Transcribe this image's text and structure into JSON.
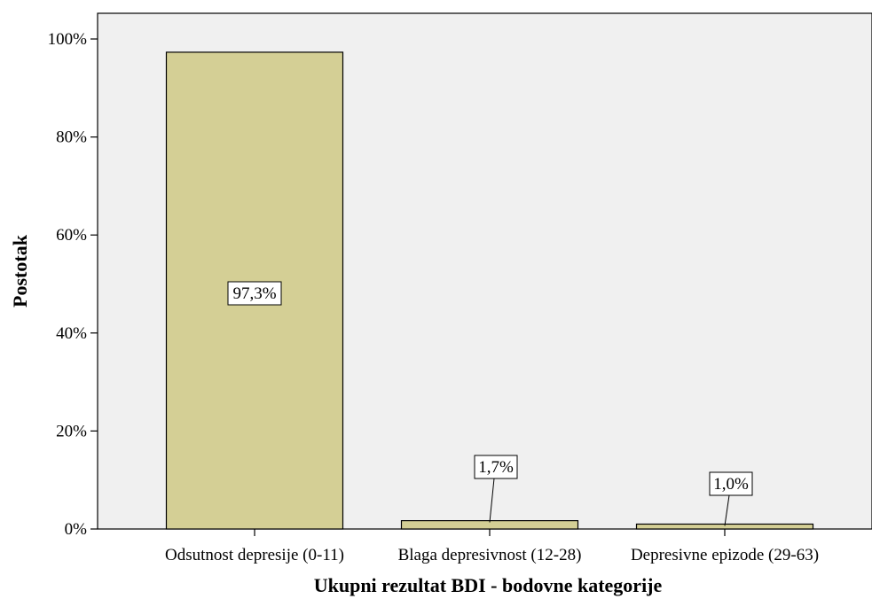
{
  "chart_data": {
    "type": "bar",
    "title": "",
    "xlabel": "Ukupni rezultat BDI - bodovne kategorije",
    "ylabel": "Postotak",
    "categories": [
      "Odsutnost depresije (0-11)",
      "Blaga depresivnost (12-28)",
      "Depresivne epizode (29-63)"
    ],
    "values": [
      97.3,
      1.7,
      1.0
    ],
    "data_labels": [
      "97,3%",
      "1,7%",
      "1,0%"
    ],
    "ylim": [
      0,
      100
    ],
    "yticks": [
      0,
      20,
      40,
      60,
      80,
      100
    ],
    "ytick_labels": [
      "0%",
      "20%",
      "40%",
      "60%",
      "80%",
      "100%"
    ],
    "grid": false,
    "colors": {
      "bar": "#d4cf95",
      "plot_background": "#f0f0f0",
      "bar_edge": "#000000"
    }
  }
}
